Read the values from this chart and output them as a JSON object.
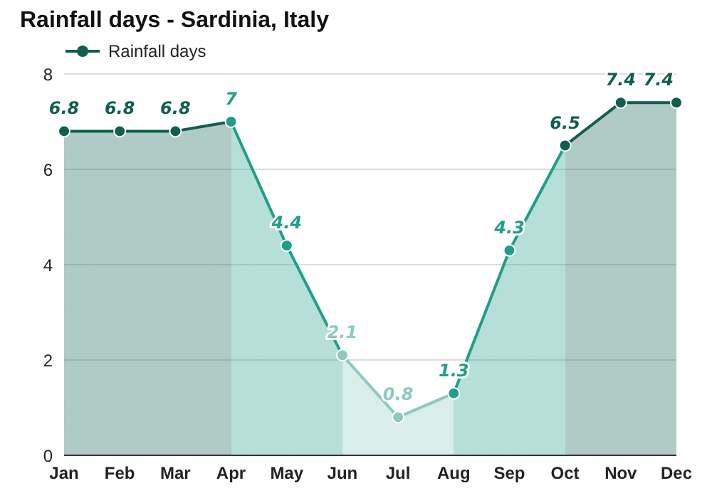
{
  "chart_data": {
    "type": "area",
    "title": "Rainfall days - Sardinia, Italy",
    "categories": [
      "Jan",
      "Feb",
      "Mar",
      "Apr",
      "May",
      "Jun",
      "Jul",
      "Aug",
      "Sep",
      "Oct",
      "Nov",
      "Dec"
    ],
    "series": [
      {
        "name": "Rainfall days",
        "color": "#0f5e4f",
        "values": [
          6.8,
          6.8,
          6.8,
          7,
          4.4,
          2.1,
          0.8,
          1.3,
          4.3,
          6.5,
          7.4,
          7.4
        ],
        "colors": [
          "#0f5e4f",
          "#0f5e4f",
          "#0f5e4f",
          "#1f9e88",
          "#1f9e88",
          "#8cc9c1",
          "#8cc9c1",
          "#1f9e88",
          "#1f9e88",
          "#0f5e4f",
          "#0f5e4f",
          "#0f5e4f"
        ]
      }
    ],
    "ylim": [
      0,
      8
    ],
    "yticks": [
      0,
      2,
      4,
      6,
      8
    ],
    "grid": "y",
    "legend": "top left",
    "marker": "circle",
    "data_labels": true
  }
}
